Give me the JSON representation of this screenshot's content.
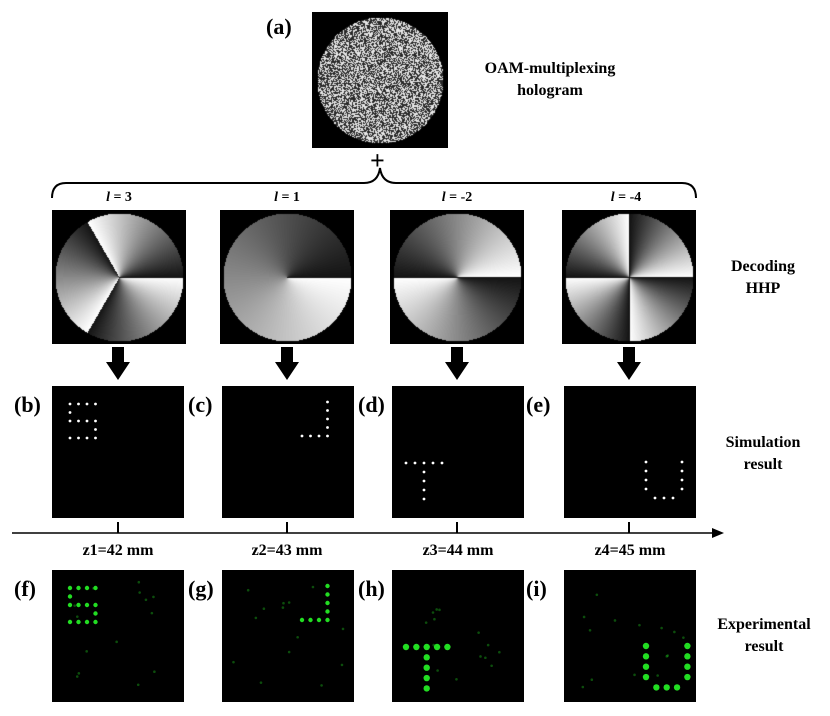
{
  "labels": {
    "a": "(a)",
    "b": "(b)",
    "c": "(c)",
    "d": "(d)",
    "e": "(e)",
    "f": "(f)",
    "g": "(g)",
    "h": "(h)",
    "i": "(i)",
    "plus": "+"
  },
  "hologram": {
    "line1": "OAM-multiplexing",
    "line2": "hologram"
  },
  "decoding": {
    "line1": "Decoding",
    "line2": "HHP"
  },
  "simulation": {
    "line1": "Simulation",
    "line2": "result"
  },
  "experimental": {
    "line1": "Experimental",
    "line2": "result"
  },
  "hhp": [
    {
      "l_sym": "l",
      "l_val": " = 3",
      "charge": 3
    },
    {
      "l_sym": "l",
      "l_val": " = 1",
      "charge": 1
    },
    {
      "l_sym": "l",
      "l_val": " = -2",
      "charge": -2
    },
    {
      "l_sym": "l",
      "l_val": " = -4",
      "charge": -4
    }
  ],
  "z_positions": [
    {
      "label": "z1=42 mm"
    },
    {
      "label": "z2=43 mm"
    },
    {
      "label": "z3=44 mm"
    },
    {
      "label": "z4=45 mm"
    }
  ],
  "colors": {
    "sim_dot": "#ffffff",
    "exp_dot": "#22dd22",
    "background": "#000000"
  }
}
